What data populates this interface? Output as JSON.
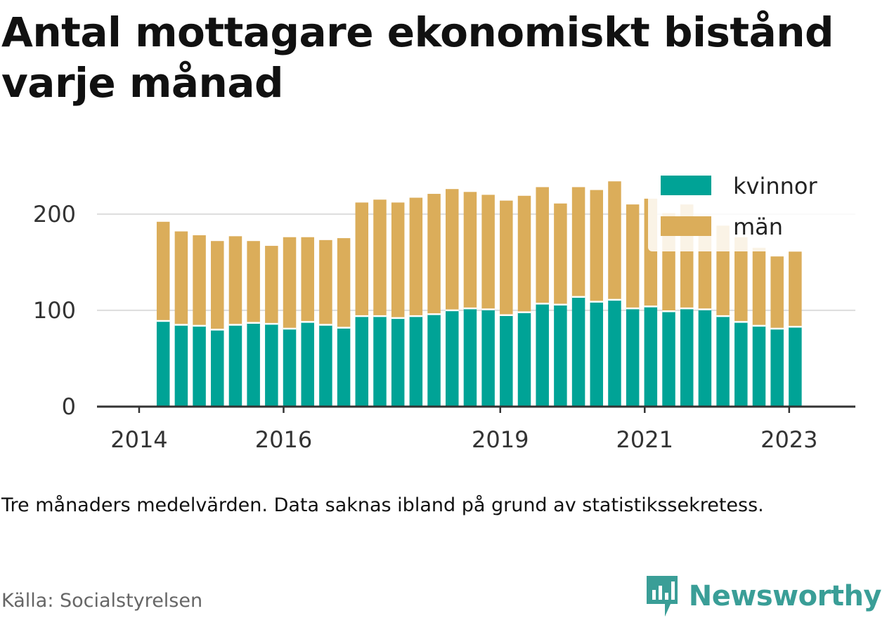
{
  "title": "Antal mottagare ekonomiskt bistånd varje månad",
  "note": "Tre månaders medelvärden. Data saknas ibland på grund av statistikssekretess.",
  "source": "Källa: Socialstyrelsen",
  "brand": "Newsworthy",
  "colors": {
    "kvinnor": "#00a396",
    "man": "#dbad5a",
    "grid": "#dddddd",
    "axis": "#333333",
    "brand": "#3a9e97"
  },
  "chart_data": {
    "type": "bar",
    "stacked": true,
    "x": [
      "2014-05",
      "2014-08",
      "2014-11",
      "2015-02",
      "2015-05",
      "2015-08",
      "2015-11",
      "2016-02",
      "2016-05",
      "2016-08",
      "2016-11",
      "2017-02",
      "2017-05",
      "2017-08",
      "2017-11",
      "2018-02",
      "2018-05",
      "2018-08",
      "2018-11",
      "2019-02",
      "2019-05",
      "2019-08",
      "2019-11",
      "2020-02",
      "2020-05",
      "2020-08",
      "2020-11",
      "2021-02",
      "2021-05",
      "2021-08",
      "2021-11",
      "2022-02",
      "2022-05",
      "2022-08",
      "2022-11",
      "2023-02",
      "2023-05"
    ],
    "series": [
      {
        "name": "kvinnor",
        "values": [
          89,
          85,
          84,
          80,
          85,
          87,
          86,
          81,
          88,
          85,
          82,
          94,
          94,
          92,
          94,
          96,
          100,
          102,
          101,
          95,
          98,
          107,
          106,
          114,
          109,
          111,
          102,
          104,
          99,
          102,
          101,
          94,
          88,
          84,
          81,
          83,
          null
        ]
      },
      {
        "name": "män",
        "values": [
          103,
          97,
          94,
          92,
          92,
          85,
          81,
          95,
          88,
          88,
          93,
          118,
          121,
          120,
          123,
          125,
          126,
          121,
          119,
          119,
          121,
          121,
          105,
          114,
          116,
          123,
          108,
          112,
          102,
          108,
          94,
          94,
          88,
          81,
          75,
          78,
          null
        ]
      }
    ],
    "ylim": [
      0,
      240
    ],
    "yticks": [
      "0",
      "100",
      "200"
    ],
    "xticks": [
      "2014",
      "2016",
      "2019",
      "2021",
      "2023"
    ],
    "xtick_dates": [
      "2014-01",
      "2016-01",
      "2019-01",
      "2021-01",
      "2023-01"
    ],
    "xlim": [
      "2013-06",
      "2023-12"
    ],
    "legend": {
      "position": "top-right",
      "items": [
        "kvinnor",
        "män"
      ]
    },
    "grid": true
  }
}
